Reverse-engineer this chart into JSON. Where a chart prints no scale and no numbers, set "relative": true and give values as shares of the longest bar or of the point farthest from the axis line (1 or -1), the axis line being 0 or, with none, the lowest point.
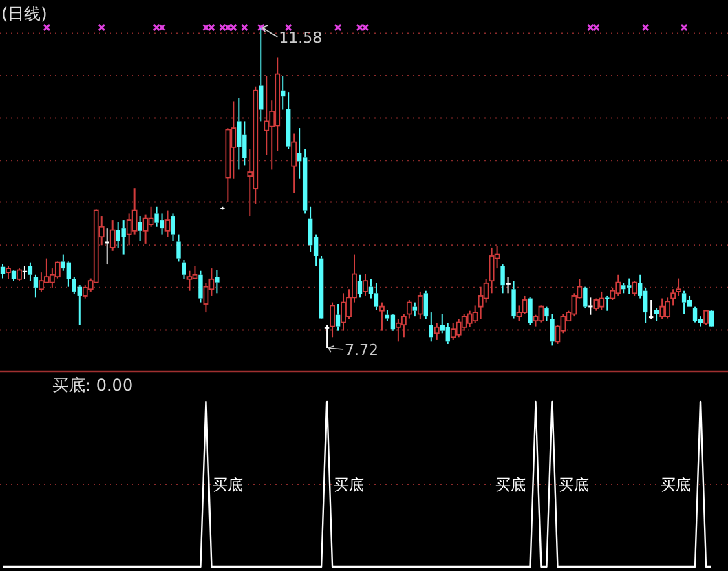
{
  "chart_data": [
    {
      "type": "candlestick",
      "title": "(日线)",
      "categories": [
        null,
        null,
        null,
        null,
        null,
        null,
        null,
        null,
        null,
        null,
        null,
        null,
        null,
        null,
        null,
        null,
        null,
        null,
        null,
        null,
        null,
        null,
        null,
        null,
        null,
        null,
        null,
        null,
        null,
        null,
        null,
        null,
        null,
        null,
        null,
        null,
        null,
        null,
        null,
        null,
        null,
        null,
        null,
        null,
        null,
        null,
        null,
        null,
        null,
        null,
        null,
        null,
        null,
        null,
        null,
        null,
        null,
        null,
        null,
        null,
        null,
        null,
        null,
        null,
        null,
        null,
        null,
        null,
        null,
        null,
        null,
        null,
        null,
        null,
        null,
        null,
        null,
        null,
        null,
        null,
        null,
        null,
        null,
        null,
        null,
        null,
        null,
        null,
        null,
        null,
        null,
        null,
        null,
        null,
        null,
        null,
        null,
        null,
        null,
        null,
        null,
        null,
        null,
        null,
        null,
        null,
        null,
        null,
        null,
        null,
        null,
        null,
        null,
        null,
        null,
        null,
        null,
        null,
        null,
        null,
        null,
        null,
        null,
        null,
        null,
        null,
        null,
        null,
        null,
        null
      ],
      "ohlc": [
        [
          8.7,
          8.73,
          8.56,
          8.61
        ],
        [
          8.63,
          8.71,
          8.55,
          8.68
        ],
        [
          8.65,
          8.66,
          8.53,
          8.55
        ],
        [
          8.55,
          8.68,
          8.53,
          8.66
        ],
        [
          8.65,
          8.71,
          8.55,
          8.65
        ],
        [
          8.71,
          8.75,
          8.53,
          8.6
        ],
        [
          8.58,
          8.6,
          8.33,
          8.45
        ],
        [
          8.43,
          8.63,
          8.4,
          8.53
        ],
        [
          8.51,
          8.8,
          8.5,
          8.58
        ],
        [
          8.51,
          8.68,
          8.45,
          8.6
        ],
        [
          8.58,
          8.76,
          8.56,
          8.75
        ],
        [
          8.76,
          8.85,
          8.65,
          8.68
        ],
        [
          8.75,
          8.76,
          8.46,
          8.55
        ],
        [
          8.55,
          8.58,
          8.37,
          8.4
        ],
        [
          8.46,
          8.48,
          8.0,
          8.35
        ],
        [
          8.35,
          8.48,
          8.32,
          8.45
        ],
        [
          8.43,
          8.56,
          8.4,
          8.53
        ],
        [
          8.51,
          9.39,
          8.5,
          9.38
        ],
        [
          9.06,
          9.31,
          8.96,
          9.18
        ],
        [
          9.0,
          9.16,
          8.73,
          9.0
        ],
        [
          8.93,
          9.26,
          8.89,
          9.14
        ],
        [
          9.14,
          9.24,
          8.93,
          9.01
        ],
        [
          9.16,
          9.26,
          8.85,
          9.06
        ],
        [
          9.09,
          9.34,
          8.96,
          9.26
        ],
        [
          9.13,
          9.64,
          9.09,
          9.38
        ],
        [
          9.24,
          9.31,
          9.01,
          9.13
        ],
        [
          9.13,
          9.33,
          8.98,
          9.28
        ],
        [
          9.21,
          9.42,
          9.18,
          9.28
        ],
        [
          9.34,
          9.42,
          9.18,
          9.23
        ],
        [
          9.26,
          9.34,
          9.09,
          9.16
        ],
        [
          9.13,
          9.38,
          9.06,
          9.26
        ],
        [
          9.31,
          9.34,
          9.01,
          9.09
        ],
        [
          9.0,
          9.09,
          8.76,
          8.8
        ],
        [
          8.75,
          8.78,
          8.55,
          8.6
        ],
        [
          8.55,
          8.65,
          8.41,
          8.58
        ],
        [
          8.56,
          8.71,
          8.55,
          8.6
        ],
        [
          8.6,
          8.65,
          8.27,
          8.32
        ],
        [
          8.25,
          8.5,
          8.15,
          8.46
        ],
        [
          8.43,
          8.68,
          8.35,
          8.55
        ],
        [
          8.58,
          8.66,
          8.38,
          8.51
        ],
        [
          9.41,
          9.42,
          9.39,
          9.41
        ],
        [
          9.77,
          10.37,
          9.48,
          10.35
        ],
        [
          10.14,
          10.69,
          9.76,
          10.37
        ],
        [
          10.45,
          10.73,
          9.87,
          10.14
        ],
        [
          10.29,
          10.45,
          9.92,
          10.01
        ],
        [
          9.79,
          10.12,
          9.31,
          9.84
        ],
        [
          9.64,
          10.87,
          9.46,
          10.82
        ],
        [
          10.88,
          11.58,
          10.45,
          10.59
        ],
        [
          10.34,
          11.0,
          10.04,
          10.45
        ],
        [
          10.39,
          10.7,
          9.87,
          10.57
        ],
        [
          10.4,
          11.22,
          10.09,
          11.02
        ],
        [
          10.82,
          11.0,
          10.59,
          10.75
        ],
        [
          10.6,
          10.8,
          10.12,
          10.15
        ],
        [
          9.91,
          10.3,
          9.59,
          10.2
        ],
        [
          10.07,
          10.37,
          9.76,
          9.97
        ],
        [
          10.02,
          10.12,
          9.34,
          9.38
        ],
        [
          9.28,
          9.42,
          8.88,
          8.96
        ],
        [
          9.06,
          9.09,
          8.71,
          8.83
        ],
        [
          8.8,
          8.83,
          8.07,
          8.08
        ],
        [
          7.97,
          8.0,
          7.72,
          7.97
        ],
        [
          7.98,
          8.27,
          7.85,
          8.23
        ],
        [
          8.12,
          8.25,
          7.93,
          7.98
        ],
        [
          8.03,
          8.38,
          7.93,
          8.27
        ],
        [
          8.1,
          8.43,
          8.07,
          8.33
        ],
        [
          8.33,
          8.85,
          8.27,
          8.61
        ],
        [
          8.53,
          8.6,
          8.33,
          8.37
        ],
        [
          8.4,
          8.61,
          8.35,
          8.53
        ],
        [
          8.46,
          8.55,
          8.32,
          8.37
        ],
        [
          8.38,
          8.5,
          8.18,
          8.22
        ],
        [
          8.17,
          8.27,
          7.93,
          8.22
        ],
        [
          8.12,
          8.18,
          8.05,
          8.08
        ],
        [
          8.12,
          8.13,
          7.93,
          7.95
        ],
        [
          7.97,
          8.07,
          7.8,
          8.02
        ],
        [
          8.0,
          8.13,
          7.85,
          8.1
        ],
        [
          8.13,
          8.3,
          8.08,
          8.27
        ],
        [
          8.22,
          8.27,
          8.1,
          8.17
        ],
        [
          8.13,
          8.4,
          8.07,
          8.35
        ],
        [
          8.38,
          8.41,
          8.07,
          8.1
        ],
        [
          8.0,
          8.15,
          7.8,
          7.85
        ],
        [
          7.9,
          8.02,
          7.82,
          7.97
        ],
        [
          8.0,
          8.13,
          7.9,
          7.93
        ],
        [
          7.97,
          8.02,
          7.77,
          7.8
        ],
        [
          7.85,
          8.02,
          7.82,
          7.95
        ],
        [
          7.88,
          8.07,
          7.85,
          8.03
        ],
        [
          7.97,
          8.13,
          7.93,
          8.1
        ],
        [
          8.02,
          8.17,
          7.97,
          8.13
        ],
        [
          8.05,
          8.23,
          8.02,
          8.15
        ],
        [
          8.22,
          8.46,
          8.07,
          8.35
        ],
        [
          8.32,
          8.55,
          8.27,
          8.5
        ],
        [
          8.53,
          8.93,
          8.38,
          8.83
        ],
        [
          8.8,
          8.95,
          8.68,
          8.85
        ],
        [
          8.71,
          8.73,
          8.38,
          8.48
        ],
        [
          8.5,
          8.58,
          8.38,
          8.5
        ],
        [
          8.43,
          8.53,
          8.08,
          8.1
        ],
        [
          8.1,
          8.23,
          8.05,
          8.15
        ],
        [
          8.15,
          8.35,
          8.13,
          8.3
        ],
        [
          8.32,
          8.33,
          8.0,
          8.02
        ],
        [
          8.05,
          8.12,
          7.98,
          8.1
        ],
        [
          8.05,
          8.23,
          8.03,
          8.22
        ],
        [
          8.2,
          8.22,
          8.05,
          8.1
        ],
        [
          8.07,
          8.13,
          7.75,
          7.8
        ],
        [
          7.8,
          8.0,
          7.77,
          7.98
        ],
        [
          7.93,
          8.13,
          7.9,
          8.1
        ],
        [
          8.05,
          8.17,
          8.05,
          8.15
        ],
        [
          8.13,
          8.38,
          8.1,
          8.35
        ],
        [
          8.33,
          8.55,
          8.32,
          8.46
        ],
        [
          8.45,
          8.46,
          8.2,
          8.22
        ],
        [
          8.23,
          8.33,
          8.12,
          8.23
        ],
        [
          8.2,
          8.32,
          8.17,
          8.3
        ],
        [
          8.22,
          8.4,
          8.18,
          8.32
        ],
        [
          8.33,
          8.35,
          8.17,
          8.32
        ],
        [
          8.32,
          8.45,
          8.3,
          8.41
        ],
        [
          8.38,
          8.6,
          8.35,
          8.51
        ],
        [
          8.48,
          8.5,
          8.38,
          8.43
        ],
        [
          8.48,
          8.56,
          8.37,
          8.45
        ],
        [
          8.38,
          8.53,
          8.35,
          8.51
        ],
        [
          8.5,
          8.6,
          8.32,
          8.35
        ],
        [
          8.41,
          8.45,
          8.02,
          8.15
        ],
        [
          8.1,
          8.3,
          8.07,
          8.1
        ],
        [
          8.18,
          8.2,
          8.05,
          8.13
        ],
        [
          8.1,
          8.32,
          8.07,
          8.22
        ],
        [
          8.1,
          8.33,
          8.08,
          8.28
        ],
        [
          8.32,
          8.43,
          8.23,
          8.38
        ],
        [
          8.4,
          8.56,
          8.35,
          8.43
        ],
        [
          8.38,
          8.41,
          8.13,
          8.27
        ],
        [
          8.3,
          8.35,
          8.22,
          8.22
        ],
        [
          8.2,
          8.22,
          8.03,
          8.05
        ],
        [
          8.07,
          8.1,
          7.98,
          8.02
        ],
        [
          8.02,
          8.18,
          8.0,
          8.17
        ],
        [
          8.17,
          8.18,
          7.97,
          7.98
        ]
      ],
      "colors": [
        "#54fcfc",
        "#d23c3c",
        "#54fcfc",
        "#d23c3c",
        "#ffffff",
        "#54fcfc",
        "#54fcfc",
        "#d23c3c",
        "#d23c3c",
        "#d23c3c",
        "#d23c3c",
        "#54fcfc",
        "#54fcfc",
        "#54fcfc",
        "#54fcfc",
        "#d23c3c",
        "#d23c3c",
        "#d23c3c",
        "#d23c3c",
        "#ffffff",
        "#d23c3c",
        "#54fcfc",
        "#54fcfc",
        "#d23c3c",
        "#d23c3c",
        "#54fcfc",
        "#d23c3c",
        "#d23c3c",
        "#54fcfc",
        "#54fcfc",
        "#d23c3c",
        "#54fcfc",
        "#54fcfc",
        "#54fcfc",
        "#d23c3c",
        "#d23c3c",
        "#54fcfc",
        "#d23c3c",
        "#d23c3c",
        "#54fcfc",
        "#ffffff",
        "#d23c3c",
        "#d23c3c",
        "#54fcfc",
        "#54fcfc",
        "#d23c3c",
        "#d23c3c",
        "#54fcfc",
        "#d23c3c",
        "#d23c3c",
        "#d23c3c",
        "#54fcfc",
        "#54fcfc",
        "#d23c3c",
        "#54fcfc",
        "#54fcfc",
        "#54fcfc",
        "#54fcfc",
        "#54fcfc",
        "#ffffff",
        "#d23c3c",
        "#54fcfc",
        "#d23c3c",
        "#d23c3c",
        "#d23c3c",
        "#54fcfc",
        "#d23c3c",
        "#54fcfc",
        "#54fcfc",
        "#d23c3c",
        "#54fcfc",
        "#54fcfc",
        "#d23c3c",
        "#d23c3c",
        "#d23c3c",
        "#54fcfc",
        "#d23c3c",
        "#54fcfc",
        "#54fcfc",
        "#d23c3c",
        "#54fcfc",
        "#54fcfc",
        "#d23c3c",
        "#d23c3c",
        "#d23c3c",
        "#d23c3c",
        "#d23c3c",
        "#d23c3c",
        "#d23c3c",
        "#d23c3c",
        "#d23c3c",
        "#54fcfc",
        "#ffffff",
        "#54fcfc",
        "#d23c3c",
        "#d23c3c",
        "#54fcfc",
        "#d23c3c",
        "#d23c3c",
        "#54fcfc",
        "#54fcfc",
        "#d23c3c",
        "#d23c3c",
        "#d23c3c",
        "#d23c3c",
        "#d23c3c",
        "#54fcfc",
        "#ffffff",
        "#d23c3c",
        "#d23c3c",
        "#54fcfc",
        "#d23c3c",
        "#d23c3c",
        "#54fcfc",
        "#54fcfc",
        "#d23c3c",
        "#54fcfc",
        "#54fcfc",
        "#ffffff",
        "#54fcfc",
        "#d23c3c",
        "#d23c3c",
        "#d23c3c",
        "#d23c3c",
        "#54fcfc",
        "#54fcfc",
        "#54fcfc",
        "#54fcfc",
        "#d23c3c",
        "#54fcfc"
      ],
      "grid": "y",
      "yticks": [
        {
          "value": 11.51,
          "label": null
        },
        {
          "value": 11.0,
          "label": null
        },
        {
          "value": 10.49,
          "label": null
        },
        {
          "value": 9.98,
          "label": null
        },
        {
          "value": 9.48,
          "label": null
        },
        {
          "value": 8.96,
          "label": null
        },
        {
          "value": 8.45,
          "label": null
        },
        {
          "value": 7.94,
          "label": null
        }
      ],
      "annotations": [
        "11.58",
        "7.72"
      ],
      "series": [
        {
          "type": "scatter",
          "color": "#e040e0",
          "marker": "cross",
          "values": [
            null,
            null,
            null,
            null,
            null,
            null,
            null,
            null,
            11.58,
            null,
            null,
            null,
            null,
            null,
            null,
            null,
            null,
            null,
            11.58,
            null,
            null,
            null,
            null,
            null,
            null,
            null,
            null,
            null,
            11.58,
            11.58,
            null,
            null,
            null,
            null,
            null,
            null,
            null,
            11.58,
            11.58,
            null,
            11.58,
            11.58,
            11.58,
            null,
            11.58,
            null,
            null,
            11.58,
            null,
            null,
            null,
            null,
            11.58,
            null,
            null,
            null,
            null,
            null,
            null,
            null,
            null,
            11.58,
            null,
            null,
            null,
            11.58,
            11.58,
            null,
            null,
            null,
            null,
            null,
            null,
            null,
            null,
            null,
            null,
            null,
            null,
            null,
            null,
            null,
            null,
            null,
            null,
            null,
            null,
            null,
            null,
            null,
            null,
            null,
            null,
            null,
            null,
            null,
            null,
            null,
            null,
            null,
            null,
            null,
            null,
            null,
            null,
            null,
            null,
            11.58,
            11.58,
            null,
            null,
            null,
            null,
            null,
            null,
            null,
            null,
            11.58,
            null,
            null,
            null,
            null,
            null,
            null,
            11.58,
            null,
            null,
            null,
            null,
            null
          ]
        }
      ]
    },
    {
      "type": "line",
      "title": "买底: 0.00",
      "relative": true,
      "color": "#ffffff",
      "categories": [
        null,
        null,
        null,
        null,
        null,
        null,
        null,
        null,
        null,
        null,
        null,
        null,
        null,
        null,
        null,
        null,
        null,
        null,
        null,
        null,
        null,
        null,
        null,
        null,
        null,
        null,
        null,
        null,
        null,
        null,
        null,
        null,
        null,
        null,
        null,
        null,
        null,
        null,
        null,
        null,
        null,
        null,
        null,
        null,
        null,
        null,
        null,
        null,
        null,
        null,
        null,
        null,
        null,
        null,
        null,
        null,
        null,
        null,
        null,
        null,
        null,
        null,
        null,
        null,
        null,
        null,
        null,
        null,
        null,
        null,
        null,
        null,
        null,
        null,
        null,
        null,
        null,
        null,
        null,
        null,
        null,
        null,
        null,
        null,
        null,
        null,
        null,
        null,
        null,
        null,
        null,
        null,
        null,
        null,
        null,
        null,
        null,
        null,
        null,
        null,
        null,
        null,
        null,
        null,
        null,
        null,
        null,
        null,
        null,
        null,
        null,
        null,
        null,
        null,
        null,
        null,
        null,
        null,
        null,
        null,
        null,
        null,
        null,
        null,
        null,
        null,
        null,
        null,
        null,
        null
      ],
      "values": [
        0,
        0,
        0,
        0,
        0,
        0,
        0,
        0,
        0,
        0,
        0,
        0,
        0,
        0,
        0,
        0,
        0,
        0,
        0,
        0,
        0,
        0,
        0,
        0,
        0,
        0,
        0,
        0,
        0,
        0,
        0,
        0,
        0,
        0,
        0,
        0,
        0,
        1,
        0,
        0,
        0,
        0,
        0,
        0,
        0,
        0,
        0,
        0,
        0,
        0,
        0,
        0,
        0,
        0,
        0,
        0,
        0,
        0,
        0,
        1,
        0,
        0,
        0,
        0,
        0,
        0,
        0,
        0,
        0,
        0,
        0,
        0,
        0,
        0,
        0,
        0,
        0,
        0,
        0,
        0,
        0,
        0,
        0,
        0,
        0,
        0,
        0,
        0,
        0,
        0,
        0,
        0,
        0,
        0,
        0,
        0,
        0,
        1,
        0,
        0,
        1,
        0,
        0,
        0,
        0,
        0,
        0,
        0,
        0,
        0,
        0,
        0,
        0,
        0,
        0,
        0,
        0,
        0,
        0,
        0,
        0,
        0,
        0,
        0,
        0,
        0,
        0,
        1,
        0,
        0
      ],
      "annotations": [
        "买底",
        "买底",
        "买底",
        "买底",
        "买底"
      ],
      "ref_lines": [
        {
          "axis": "y",
          "value": 0.5,
          "color": "#8b2a2a",
          "line_style": "dotted"
        }
      ]
    }
  ]
}
